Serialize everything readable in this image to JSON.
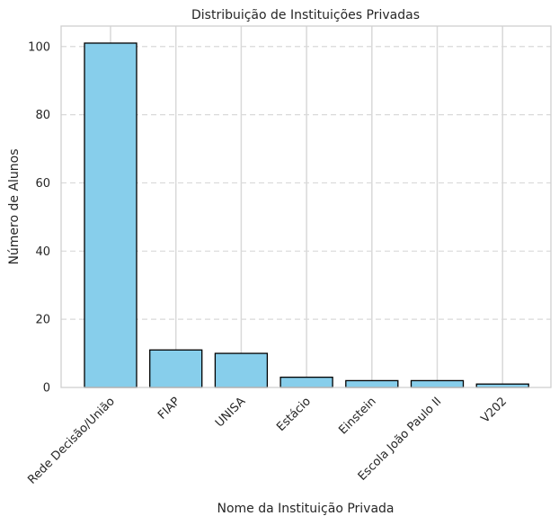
{
  "chart_data": {
    "type": "bar",
    "title": "Distribuição de Instituições Privadas",
    "xlabel": "Nome da Instituição Privada",
    "ylabel": "Número de Alunos",
    "categories": [
      "Rede Decisão/União",
      "FIAP",
      "UNISA",
      "Estácio",
      "Einstein",
      "Escola João Paulo II",
      "V202"
    ],
    "values": [
      101,
      11,
      10,
      3,
      2,
      2,
      1
    ],
    "ylim": [
      0,
      106
    ],
    "yticks": [
      0,
      20,
      40,
      60,
      80,
      100
    ],
    "grid": true,
    "colors": {
      "bar": "#87ceeb",
      "edge": "#000000",
      "grid": "#d9d9d9"
    }
  }
}
